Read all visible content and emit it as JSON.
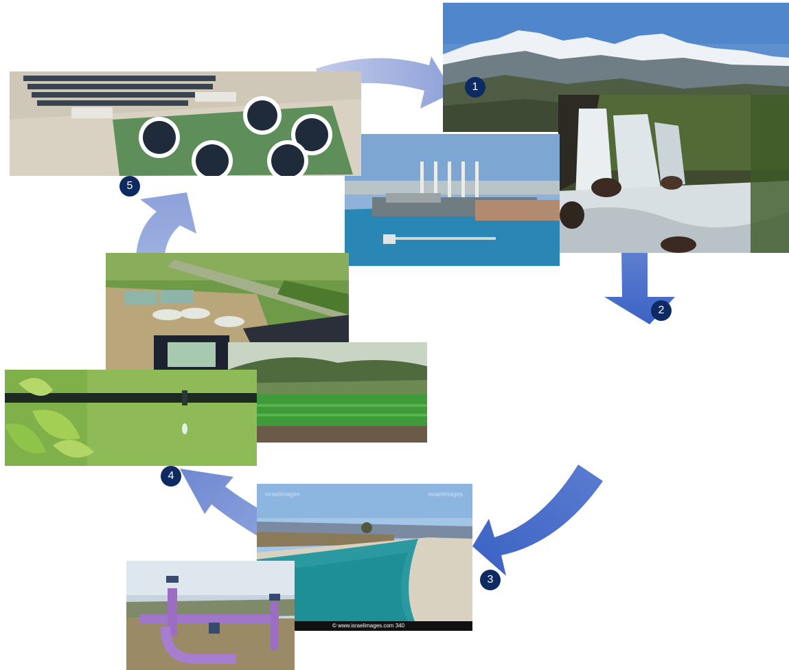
{
  "badges": [
    "1",
    "2",
    "3",
    "4",
    "5"
  ],
  "canal_photo": {
    "watermark_left": "israelimages",
    "watermark_right": "israelimages",
    "credit": "© www.israelimages.com 340"
  },
  "colors": {
    "badge": "#0d2b62",
    "arrow_light": "#9fb0da",
    "arrow_mid": "#7c92cf",
    "arrow_dark": "#3f67c4"
  }
}
